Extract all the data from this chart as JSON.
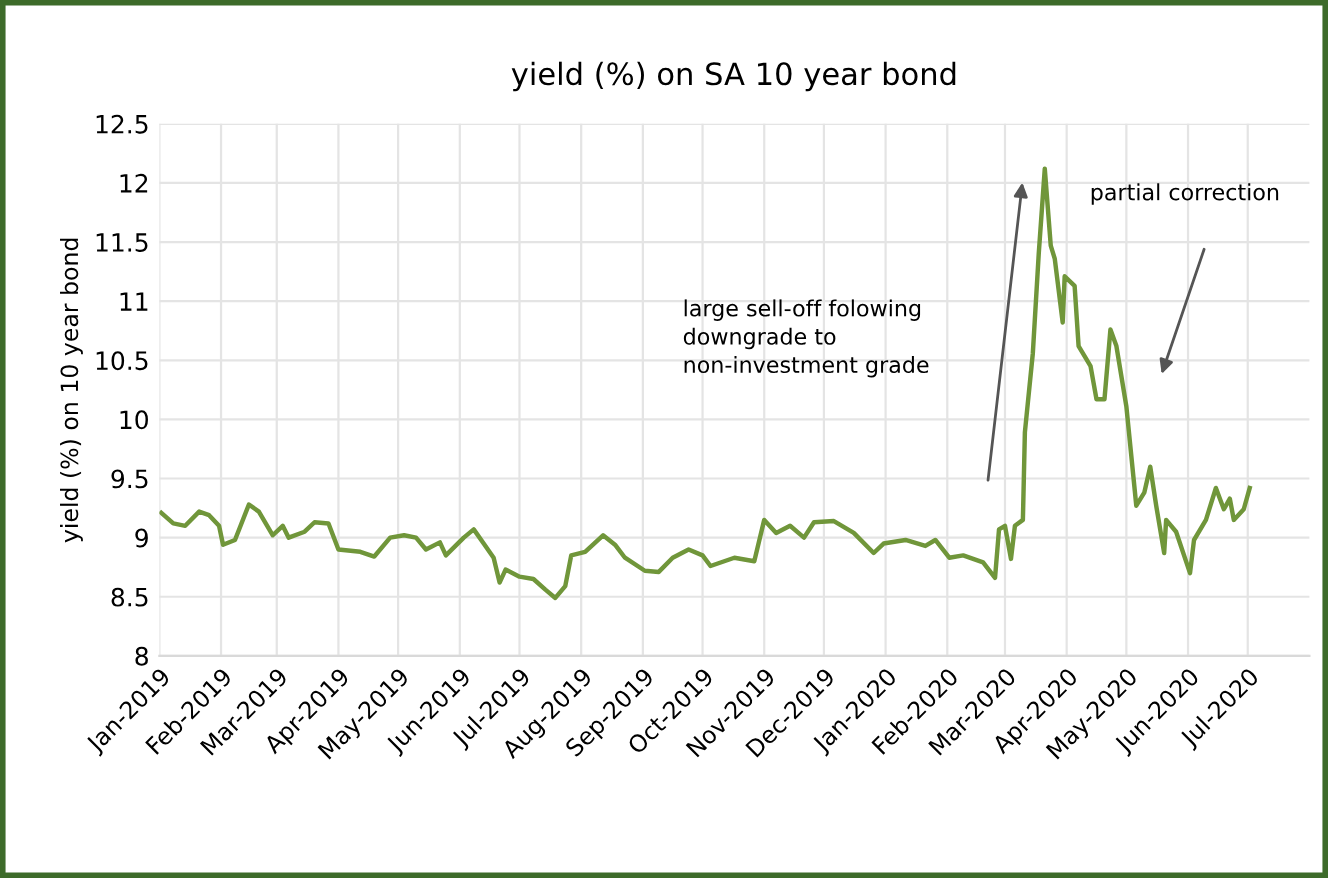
{
  "chart_data": {
    "type": "line",
    "title": "yield (%) on SA 10 year bond",
    "ylabel": "yield (%) on 10 year bond",
    "x": [
      "2019-01-02",
      "2019-01-08",
      "2019-01-14",
      "2019-01-21",
      "2019-01-26",
      "2019-01-31",
      "2019-02-02",
      "2019-02-08",
      "2019-02-15",
      "2019-02-20",
      "2019-02-27",
      "2019-03-04",
      "2019-03-07",
      "2019-03-15",
      "2019-03-20",
      "2019-03-27",
      "2019-04-01",
      "2019-04-12",
      "2019-04-19",
      "2019-04-27",
      "2019-05-04",
      "2019-05-10",
      "2019-05-15",
      "2019-05-22",
      "2019-05-25",
      "2019-06-03",
      "2019-06-08",
      "2019-06-13",
      "2019-06-18",
      "2019-06-21",
      "2019-06-24",
      "2019-07-01",
      "2019-07-08",
      "2019-07-14",
      "2019-07-19",
      "2019-07-24",
      "2019-07-27",
      "2019-08-03",
      "2019-08-12",
      "2019-08-18",
      "2019-08-23",
      "2019-09-02",
      "2019-09-09",
      "2019-09-16",
      "2019-09-24",
      "2019-10-01",
      "2019-10-05",
      "2019-10-17",
      "2019-10-27",
      "2019-11-01",
      "2019-11-07",
      "2019-11-14",
      "2019-11-21",
      "2019-11-26",
      "2019-12-06",
      "2019-12-16",
      "2019-12-26",
      "2019-12-31",
      "2020-01-11",
      "2020-01-21",
      "2020-01-26",
      "2020-02-02",
      "2020-02-09",
      "2020-02-19",
      "2020-02-25",
      "2020-02-27",
      "2020-03-01",
      "2020-03-04",
      "2020-03-06",
      "2020-03-10",
      "2020-03-11",
      "2020-03-15",
      "2020-03-18",
      "2020-03-21",
      "2020-03-24",
      "2020-03-26",
      "2020-03-30",
      "2020-03-31",
      "2020-04-05",
      "2020-04-07",
      "2020-04-13",
      "2020-04-16",
      "2020-04-20",
      "2020-04-23",
      "2020-04-26",
      "2020-05-01",
      "2020-05-06",
      "2020-05-10",
      "2020-05-13",
      "2020-05-16",
      "2020-05-20",
      "2020-05-21",
      "2020-05-26",
      "2020-06-02",
      "2020-06-04",
      "2020-06-10",
      "2020-06-15",
      "2020-06-19",
      "2020-06-22",
      "2020-06-24",
      "2020-06-29",
      "2020-07-02"
    ],
    "series": [
      {
        "color": "#70963a",
        "values": [
          9.21,
          9.12,
          9.1,
          9.22,
          9.19,
          9.1,
          8.94,
          8.98,
          9.28,
          9.22,
          9.02,
          9.1,
          9.0,
          9.05,
          9.13,
          9.12,
          8.9,
          8.88,
          8.84,
          9.0,
          9.02,
          9.0,
          8.9,
          8.96,
          8.85,
          9.0,
          9.07,
          8.95,
          8.83,
          8.62,
          8.73,
          8.67,
          8.65,
          8.56,
          8.49,
          8.59,
          8.85,
          8.88,
          9.02,
          8.94,
          8.83,
          8.72,
          8.71,
          8.83,
          8.9,
          8.85,
          8.76,
          8.83,
          8.8,
          9.15,
          9.04,
          9.1,
          9.0,
          9.13,
          9.14,
          9.04,
          8.87,
          8.95,
          8.98,
          8.93,
          8.98,
          8.83,
          8.85,
          8.79,
          8.66,
          9.07,
          9.1,
          8.82,
          9.1,
          9.15,
          9.89,
          10.56,
          11.41,
          12.12,
          11.47,
          11.36,
          10.82,
          11.21,
          11.13,
          10.62,
          10.45,
          10.17,
          10.17,
          10.76,
          10.62,
          10.11,
          9.27,
          9.38,
          9.6,
          9.27,
          8.87,
          9.15,
          9.05,
          8.7,
          8.98,
          9.15,
          9.42,
          9.24,
          9.33,
          9.15,
          9.24,
          9.42
        ]
      }
    ],
    "xlim": [
      "2019-01-01",
      "2020-08-01"
    ],
    "xticks": [
      {
        "value": "2019-01-01",
        "label": "Jan-2019"
      },
      {
        "value": "2019-02-01",
        "label": "Feb-2019"
      },
      {
        "value": "2019-03-01",
        "label": "Mar-2019"
      },
      {
        "value": "2019-04-01",
        "label": "Apr-2019"
      },
      {
        "value": "2019-05-01",
        "label": "May-2019"
      },
      {
        "value": "2019-06-01",
        "label": "Jun-2019"
      },
      {
        "value": "2019-07-01",
        "label": "Jul-2019"
      },
      {
        "value": "2019-08-01",
        "label": "Aug-2019"
      },
      {
        "value": "2019-09-01",
        "label": "Sep-2019"
      },
      {
        "value": "2019-10-01",
        "label": "Oct-2019"
      },
      {
        "value": "2019-11-01",
        "label": "Nov-2019"
      },
      {
        "value": "2019-12-01",
        "label": "Dec-2019"
      },
      {
        "value": "2020-01-01",
        "label": "Jan-2020"
      },
      {
        "value": "2020-02-01",
        "label": "Feb-2020"
      },
      {
        "value": "2020-03-01",
        "label": "Mar-2020"
      },
      {
        "value": "2020-04-01",
        "label": "Apr-2020"
      },
      {
        "value": "2020-05-01",
        "label": "May-2020"
      },
      {
        "value": "2020-06-01",
        "label": "Jun-2020"
      },
      {
        "value": "2020-07-01",
        "label": "Jul-2020"
      }
    ],
    "ylim": [
      8,
      12.5
    ],
    "yticks": [
      8,
      8.5,
      9,
      9.5,
      10,
      10.5,
      11,
      11.5,
      12,
      12.5
    ],
    "grid": true,
    "legend": false,
    "marker": "none",
    "line_style": "solid",
    "annotations": [
      "large sell-off folowing\ndowngrade to\nnon-investment grade",
      "partial correction"
    ]
  }
}
